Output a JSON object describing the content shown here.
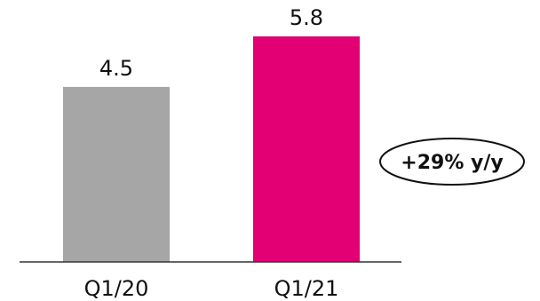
{
  "chart_data": {
    "type": "bar",
    "categories": [
      "Q1/20",
      "Q1/21"
    ],
    "values": [
      4.5,
      5.8
    ],
    "value_labels": [
      "4.5",
      "5.8"
    ],
    "colors": [
      "#a6a6a6",
      "#e20074"
    ],
    "ylim": [
      0,
      6.4
    ],
    "grid": false,
    "title": "",
    "xlabel": "",
    "ylabel": "",
    "annotation": {
      "text": "+29% y/y",
      "placement": "right"
    }
  }
}
